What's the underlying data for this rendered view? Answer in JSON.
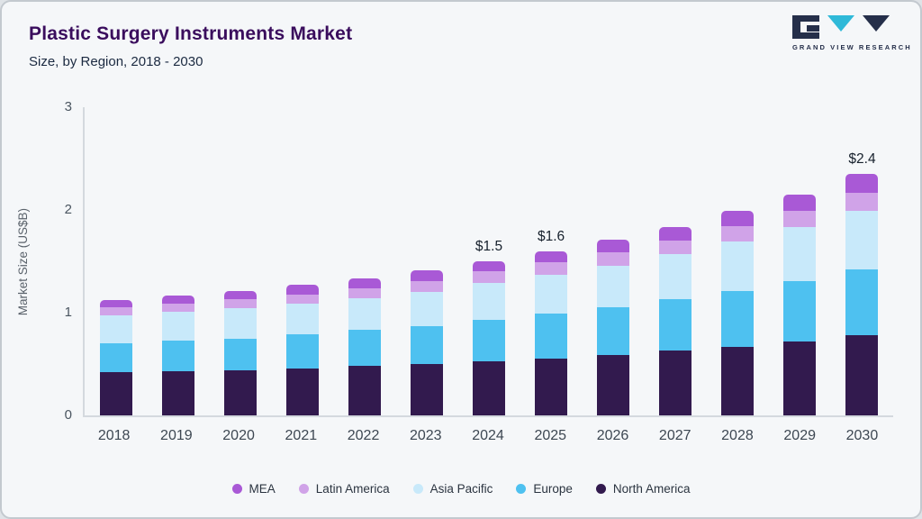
{
  "header": {
    "title": "Plastic Surgery Instruments Market",
    "subtitle": "Size, by Region, 2018 - 2030",
    "logo_text": "GRAND VIEW RESEARCH"
  },
  "chart_data": {
    "type": "bar",
    "stacked": true,
    "title": "Plastic Surgery Instruments Market",
    "subtitle": "Size, by Region, 2018 - 2030",
    "xlabel": "",
    "ylabel": "Market Size (US$B)",
    "ylim": [
      0,
      3
    ],
    "yticks": [
      0,
      1,
      2,
      3
    ],
    "grid": false,
    "legend_position": "bottom",
    "categories": [
      "2018",
      "2019",
      "2020",
      "2021",
      "2022",
      "2023",
      "2024",
      "2025",
      "2026",
      "2027",
      "2028",
      "2029",
      "2030"
    ],
    "series": [
      {
        "name": "North America",
        "color": "#321a4e",
        "values": [
          0.42,
          0.43,
          0.44,
          0.46,
          0.48,
          0.5,
          0.53,
          0.55,
          0.59,
          0.63,
          0.67,
          0.72,
          0.78
        ]
      },
      {
        "name": "Europe",
        "color": "#4ec1f0",
        "values": [
          0.28,
          0.3,
          0.31,
          0.33,
          0.35,
          0.37,
          0.4,
          0.44,
          0.46,
          0.5,
          0.54,
          0.59,
          0.64
        ]
      },
      {
        "name": "Asia Pacific",
        "color": "#c8e9fa",
        "values": [
          0.27,
          0.28,
          0.29,
          0.3,
          0.31,
          0.33,
          0.36,
          0.38,
          0.41,
          0.44,
          0.48,
          0.52,
          0.57
        ]
      },
      {
        "name": "Latin America",
        "color": "#d0a3e8",
        "values": [
          0.08,
          0.08,
          0.09,
          0.09,
          0.1,
          0.11,
          0.11,
          0.12,
          0.13,
          0.13,
          0.15,
          0.16,
          0.18
        ]
      },
      {
        "name": "MEA",
        "color": "#a959d6",
        "values": [
          0.07,
          0.08,
          0.08,
          0.09,
          0.09,
          0.1,
          0.1,
          0.11,
          0.12,
          0.13,
          0.15,
          0.16,
          0.18
        ]
      }
    ],
    "annotations": [
      {
        "category": "2024",
        "label": "$1.5"
      },
      {
        "category": "2025",
        "label": "$1.6"
      },
      {
        "category": "2030",
        "label": "$2.4"
      }
    ],
    "legend": [
      "MEA",
      "Latin America",
      "Asia Pacific",
      "Europe",
      "North America"
    ]
  }
}
